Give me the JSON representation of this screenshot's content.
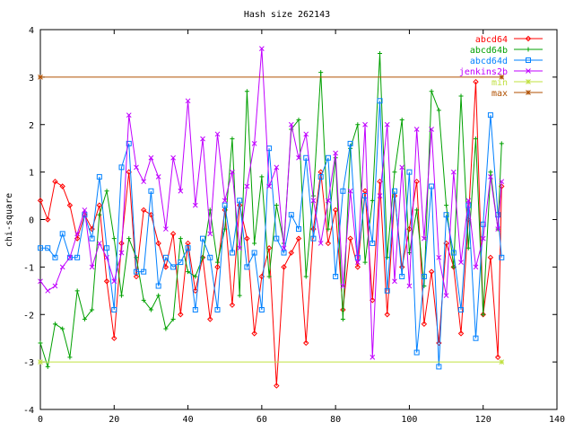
{
  "chart_data": {
    "type": "line",
    "title": "Hash size 262143",
    "xlabel": "",
    "ylabel": "chi-square",
    "xlim": [
      0,
      140
    ],
    "ylim": [
      -4,
      4
    ],
    "x_ticks": [
      0,
      20,
      40,
      60,
      80,
      100,
      120,
      140
    ],
    "y_ticks": [
      -4,
      -3,
      -2,
      -1,
      0,
      1,
      2,
      3,
      4
    ],
    "grid": false,
    "legend_position": "top-right",
    "series": [
      {
        "name": "abcd64",
        "color": "#ff0000",
        "marker": "diamond",
        "x": [
          0,
          2,
          4,
          6,
          8,
          10,
          12,
          14,
          16,
          18,
          20,
          22,
          24,
          26,
          28,
          30,
          32,
          34,
          36,
          38,
          40,
          42,
          44,
          46,
          48,
          50,
          52,
          54,
          56,
          58,
          60,
          62,
          64,
          66,
          68,
          70,
          72,
          74,
          76,
          78,
          80,
          82,
          84,
          86,
          88,
          90,
          92,
          94,
          96,
          98,
          100,
          102,
          104,
          106,
          108,
          110,
          112,
          114,
          116,
          118,
          120,
          122,
          124,
          125
        ],
        "y": [
          0.4,
          0.0,
          0.8,
          0.7,
          0.3,
          -0.4,
          0.1,
          -0.2,
          0.3,
          -1.3,
          -2.5,
          -0.5,
          1.0,
          -1.2,
          0.2,
          0.1,
          -0.5,
          -1.0,
          -0.3,
          -2.0,
          -0.5,
          -1.5,
          -0.8,
          -2.1,
          -1.0,
          0.2,
          -1.8,
          0.3,
          -0.4,
          -2.4,
          -1.2,
          -0.6,
          -3.5,
          -1.0,
          -0.7,
          -0.4,
          -2.6,
          -0.2,
          1.0,
          -0.5,
          0.2,
          -1.9,
          -0.4,
          -1.0,
          0.6,
          -1.7,
          0.8,
          -2.0,
          0.5,
          -1.0,
          -0.2,
          0.8,
          -2.2,
          -1.1,
          -2.6,
          -0.5,
          -1.0,
          -2.4,
          0.0,
          2.9,
          -2.0,
          -0.8,
          -2.9,
          0.7
        ]
      },
      {
        "name": "abcd64b",
        "color": "#00a000",
        "marker": "plus",
        "x": [
          0,
          2,
          4,
          6,
          8,
          10,
          12,
          14,
          16,
          18,
          20,
          22,
          24,
          26,
          28,
          30,
          32,
          34,
          36,
          38,
          40,
          42,
          44,
          46,
          48,
          50,
          52,
          54,
          56,
          58,
          60,
          62,
          64,
          66,
          68,
          70,
          72,
          74,
          76,
          78,
          80,
          82,
          84,
          86,
          88,
          90,
          92,
          94,
          96,
          98,
          100,
          102,
          104,
          106,
          108,
          110,
          112,
          114,
          116,
          118,
          120,
          122,
          124,
          125
        ],
        "y": [
          -2.6,
          -3.1,
          -2.2,
          -2.3,
          -2.9,
          -1.5,
          -2.1,
          -1.9,
          0.1,
          0.6,
          -0.4,
          -1.6,
          -0.4,
          -0.8,
          -1.7,
          -1.9,
          -1.6,
          -2.3,
          -2.1,
          -0.4,
          -1.1,
          -1.2,
          -0.8,
          0.2,
          -0.9,
          -0.2,
          1.7,
          -1.6,
          2.7,
          -0.5,
          0.9,
          -1.2,
          0.3,
          -0.5,
          1.9,
          2.1,
          -1.2,
          0.5,
          3.1,
          -0.2,
          1.3,
          -2.1,
          1.5,
          2.0,
          -0.9,
          0.4,
          3.5,
          -0.8,
          1.0,
          2.1,
          -0.7,
          0.2,
          -1.4,
          2.7,
          2.3,
          0.3,
          -1.0,
          2.6,
          -0.6,
          1.7,
          -2.0,
          1.0,
          -0.2,
          1.6
        ]
      },
      {
        "name": "abcd64d",
        "color": "#0080ff",
        "marker": "square",
        "x": [
          0,
          2,
          4,
          6,
          8,
          10,
          12,
          14,
          16,
          18,
          20,
          22,
          24,
          26,
          28,
          30,
          32,
          34,
          36,
          38,
          40,
          42,
          44,
          46,
          48,
          50,
          52,
          54,
          56,
          58,
          60,
          62,
          64,
          66,
          68,
          70,
          72,
          74,
          76,
          78,
          80,
          82,
          84,
          86,
          88,
          90,
          92,
          94,
          96,
          98,
          100,
          102,
          104,
          106,
          108,
          110,
          112,
          114,
          116,
          118,
          120,
          122,
          124,
          125
        ],
        "y": [
          -0.6,
          -0.6,
          -0.8,
          -0.3,
          -0.8,
          -0.8,
          0.1,
          -0.4,
          0.9,
          -0.6,
          -1.9,
          1.1,
          1.6,
          -1.1,
          -1.1,
          0.6,
          -1.4,
          -0.8,
          -1.0,
          -0.9,
          -0.6,
          -1.9,
          -0.4,
          -0.8,
          -1.9,
          0.3,
          -0.7,
          0.4,
          -1.0,
          -0.7,
          -1.9,
          1.5,
          -0.4,
          -0.7,
          0.1,
          -0.2,
          1.3,
          -0.4,
          0.9,
          1.3,
          -1.2,
          0.6,
          1.6,
          -0.8,
          0.5,
          -0.5,
          2.5,
          -1.5,
          0.6,
          -1.2,
          1.0,
          -2.8,
          -1.2,
          0.7,
          -3.1,
          0.1,
          -0.7,
          -1.9,
          0.3,
          -2.5,
          -0.1,
          2.2,
          0.1,
          -0.8
        ]
      },
      {
        "name": "jenkins2b",
        "color": "#c000ff",
        "marker": "cross",
        "x": [
          0,
          2,
          4,
          6,
          8,
          10,
          12,
          14,
          16,
          18,
          20,
          22,
          24,
          26,
          28,
          30,
          32,
          34,
          36,
          38,
          40,
          42,
          44,
          46,
          48,
          50,
          52,
          54,
          56,
          58,
          60,
          62,
          64,
          66,
          68,
          70,
          72,
          74,
          76,
          78,
          80,
          82,
          84,
          86,
          88,
          90,
          92,
          94,
          96,
          98,
          100,
          102,
          104,
          106,
          108,
          110,
          112,
          114,
          116,
          118,
          120,
          122,
          124,
          125
        ],
        "y": [
          -1.3,
          -1.5,
          -1.4,
          -1.0,
          -0.8,
          -0.3,
          0.2,
          -1.0,
          -0.5,
          -0.8,
          -1.3,
          -0.7,
          2.2,
          1.1,
          0.8,
          1.3,
          0.9,
          -0.2,
          1.3,
          0.6,
          2.5,
          0.3,
          1.7,
          -0.3,
          1.8,
          0.4,
          1.0,
          -0.6,
          0.7,
          1.6,
          3.6,
          0.7,
          1.1,
          -0.6,
          2.0,
          1.3,
          1.8,
          0.4,
          -0.5,
          0.4,
          1.4,
          -1.4,
          0.6,
          -0.9,
          2.0,
          -2.9,
          0.5,
          2.0,
          -1.3,
          1.1,
          -1.4,
          1.9,
          -0.4,
          1.9,
          -0.8,
          -1.6,
          1.0,
          -0.9,
          0.4,
          -1.0,
          -0.4,
          0.9,
          -0.2,
          0.8
        ]
      },
      {
        "name": "min",
        "color": "#c0e040",
        "marker": "asterisk",
        "x": [
          0,
          125
        ],
        "y": [
          -3,
          -3
        ]
      },
      {
        "name": "max",
        "color": "#b05000",
        "marker": "asterisk",
        "x": [
          0,
          125
        ],
        "y": [
          3,
          3
        ]
      }
    ]
  }
}
